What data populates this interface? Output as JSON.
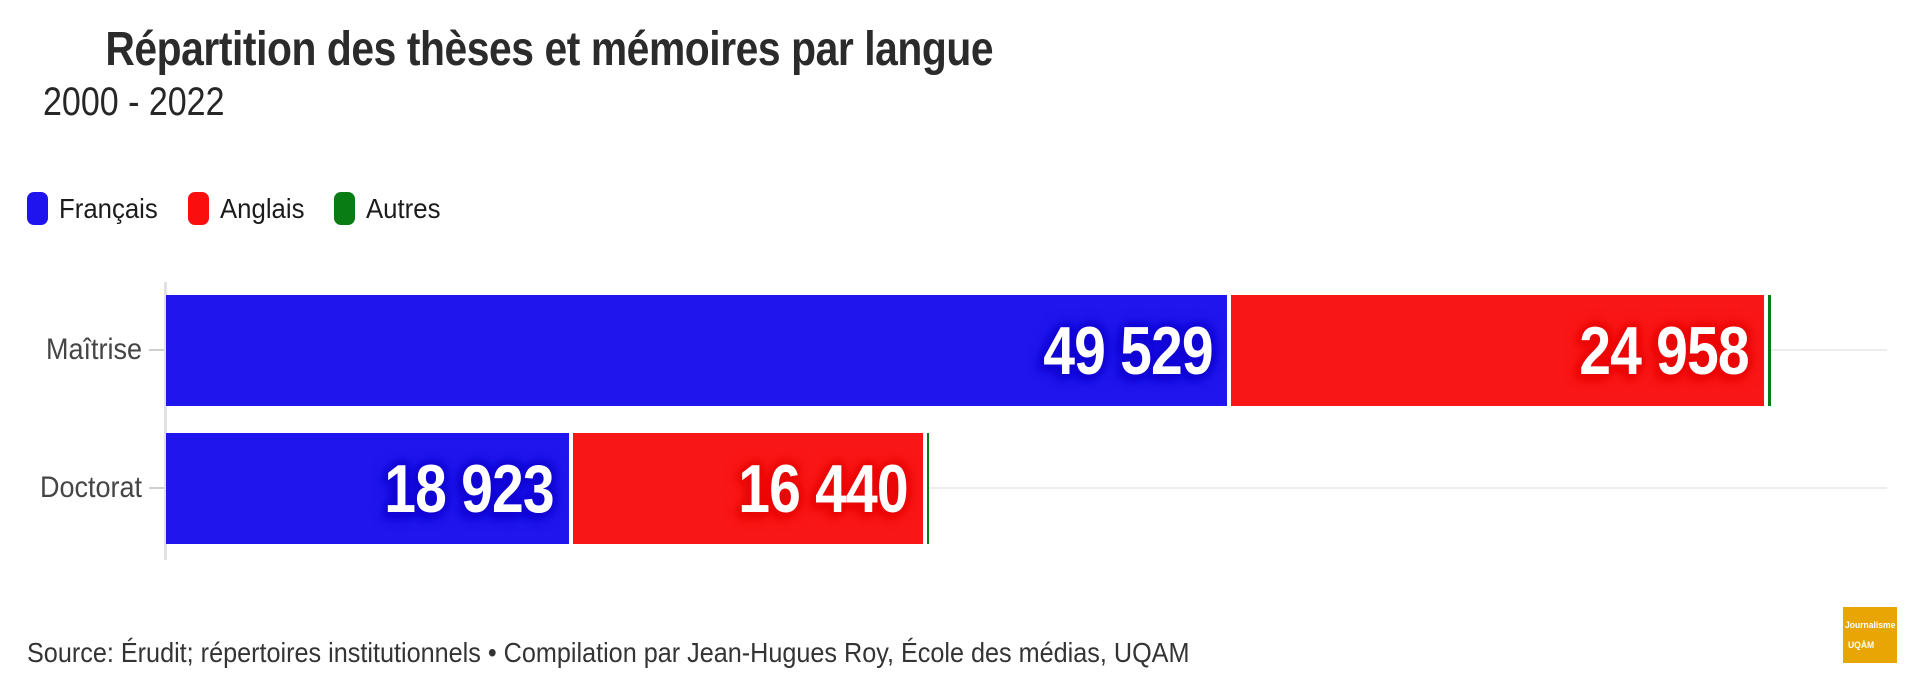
{
  "header": {
    "title": "Répartition des thèses et mémoires par langue",
    "subtitle": "2000 - 2022"
  },
  "legend": {
    "items": [
      {
        "label": "Français",
        "color": "#1f13ee"
      },
      {
        "label": "Anglais",
        "color": "#fa0e0e"
      },
      {
        "label": "Autres",
        "color": "#0a7c14"
      }
    ]
  },
  "chart_data": {
    "type": "bar",
    "orientation": "horizontal",
    "stacked": true,
    "title": "Répartition des thèses et mémoires par langue",
    "subtitle": "2000 - 2022",
    "categories": [
      "Maîtrise",
      "Doctorat"
    ],
    "series": [
      {
        "name": "Français",
        "color": "#2015ec",
        "label_halo": "#1206d2",
        "values": [
          49529,
          18923
        ],
        "labels": [
          "49 529",
          "18 923"
        ]
      },
      {
        "name": "Anglais",
        "color": "#f91616",
        "label_halo": "#e80808",
        "values": [
          24958,
          16440
        ],
        "labels": [
          "24 958",
          "16 440"
        ]
      },
      {
        "name": "Autres",
        "color": "#0a7c14",
        "label_halo": "#065c0e",
        "values": [
          140,
          110
        ],
        "labels": [
          null,
          null
        ],
        "note": "values estimated from sliver width; not labeled on chart"
      }
    ],
    "xlim": [
      0,
      80000
    ],
    "grid": "horizontal-row-guides",
    "legend_position": "top-left",
    "value_labels_inside_bars": true
  },
  "footer": {
    "source": "Source: Érudit; répertoires institutionnels • Compilation par Jean-Hugues Roy, École des médias, UQAM",
    "badge": {
      "line1": "Journalisme",
      "line2": "UQÀM",
      "background": "#e8a503",
      "text_color": "#ffffff"
    }
  }
}
